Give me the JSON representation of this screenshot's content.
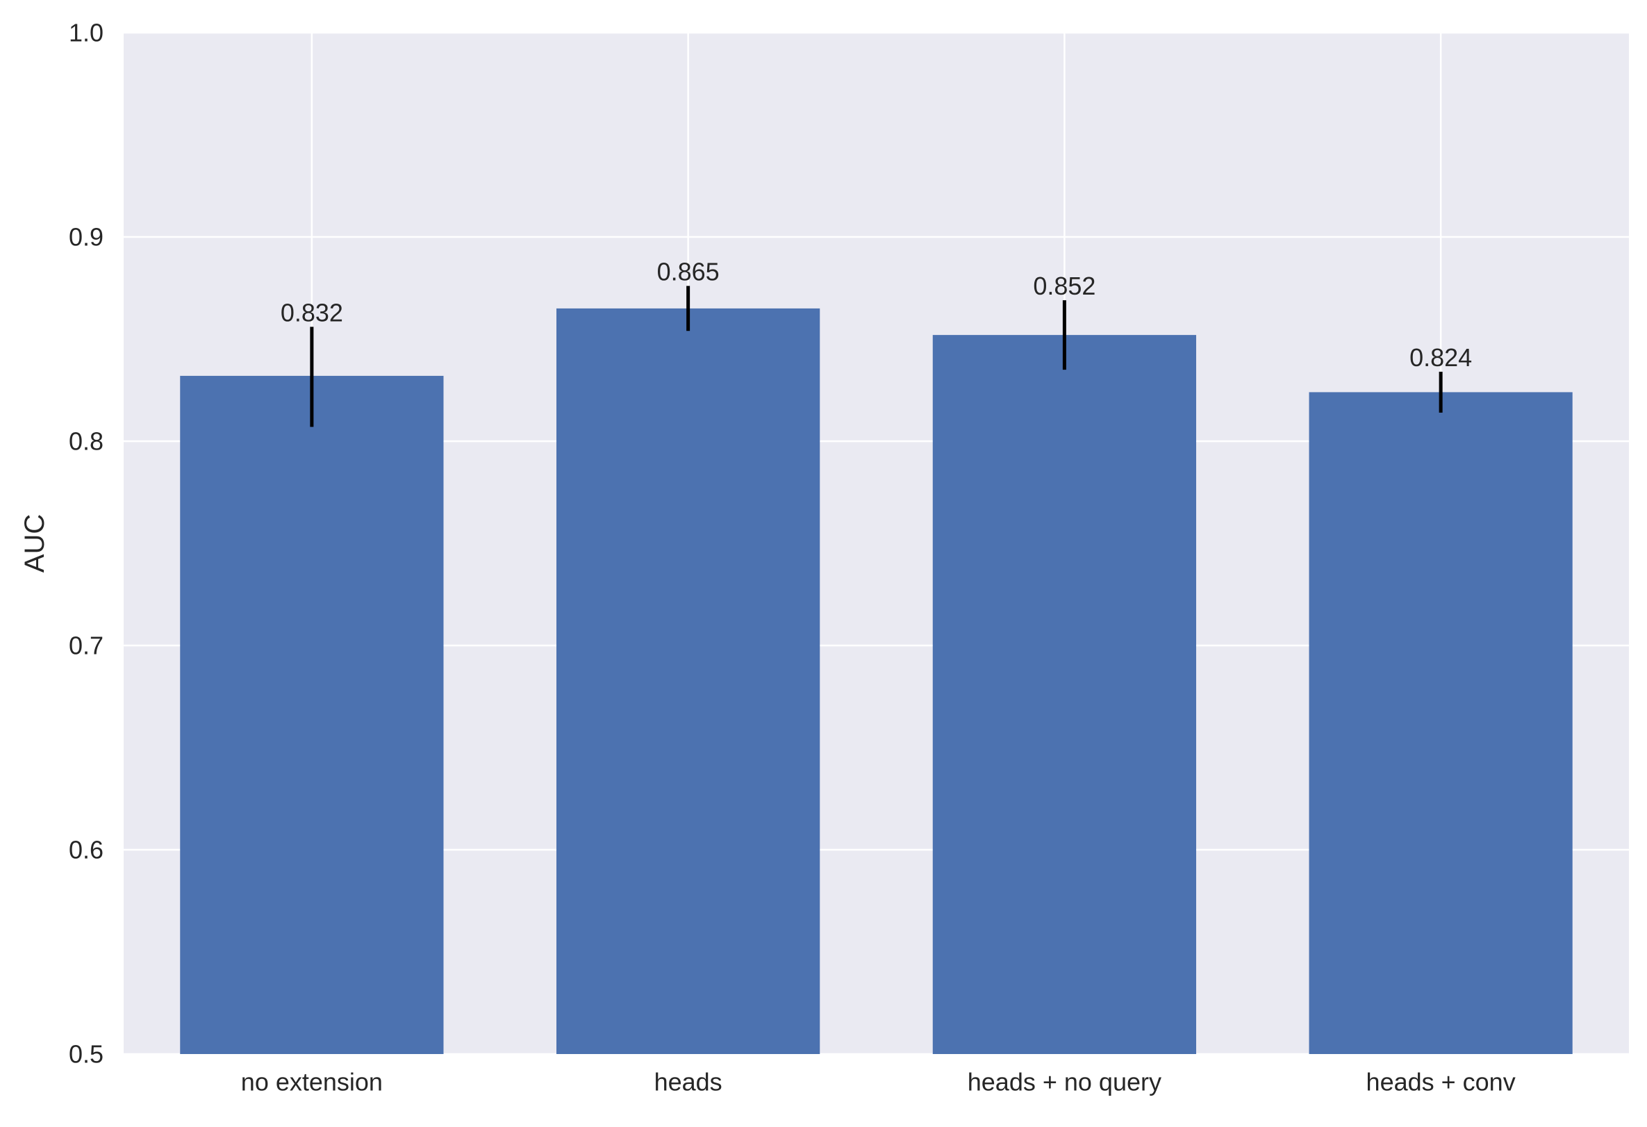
{
  "chart_data": {
    "type": "bar",
    "title": "",
    "xlabel": "",
    "ylabel": "AUC",
    "ylim": [
      0.5,
      1.0
    ],
    "yticks": [
      "0.5",
      "0.6",
      "0.7",
      "0.8",
      "0.9",
      "1.0"
    ],
    "ytick_values": [
      0.5,
      0.6,
      0.7,
      0.8,
      0.9,
      1.0
    ],
    "categories": [
      "no extension",
      "heads",
      "heads + no query",
      "heads + conv"
    ],
    "values": [
      0.832,
      0.865,
      0.852,
      0.824
    ],
    "value_labels": [
      "0.832",
      "0.865",
      "0.852",
      "0.824"
    ],
    "error_low": [
      0.807,
      0.854,
      0.835,
      0.814
    ],
    "error_high": [
      0.856,
      0.876,
      0.869,
      0.834
    ],
    "grid": true,
    "colors": {
      "bar": "#4c72b0",
      "background": "#eaeaf2",
      "grid": "#ffffff",
      "errorbar": "#000000",
      "text": "#262626"
    }
  }
}
